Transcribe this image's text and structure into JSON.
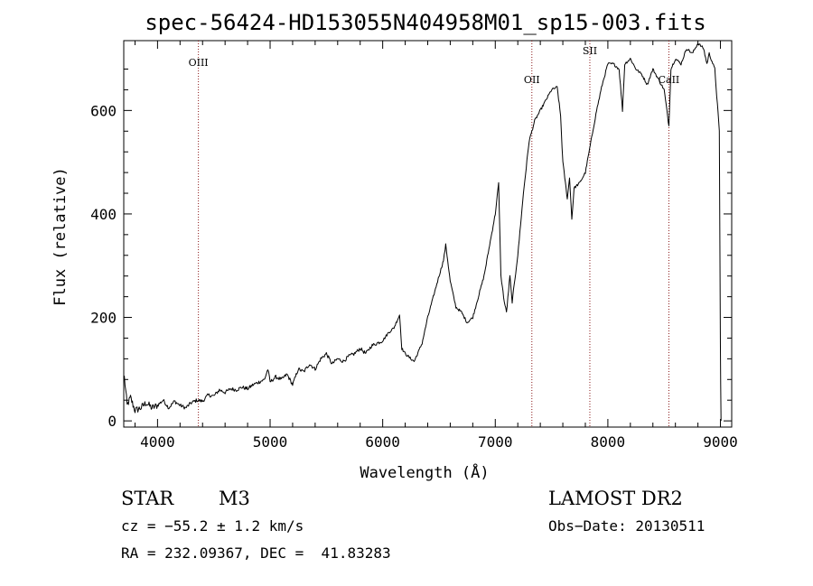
{
  "chart_data": {
    "type": "line",
    "title": "spec-56424-HD153055N404958M01_sp15-003.fits",
    "xlabel": "Wavelength (Å)",
    "ylabel": "Flux (relative)",
    "xlim": [
      3700,
      9100
    ],
    "ylim": [
      -12,
      735
    ],
    "x_ticks": [
      4000,
      5000,
      6000,
      7000,
      8000,
      9000
    ],
    "y_ticks": [
      0,
      200,
      400,
      600
    ],
    "spectral_lines": [
      {
        "label": "OIII",
        "x": 4363
      },
      {
        "label": "OII",
        "x": 7325
      },
      {
        "label": "SII",
        "x": 7840
      },
      {
        "label": "CaII",
        "x": 8542
      }
    ],
    "series": [
      {
        "name": "flux",
        "x": [
          3705,
          3730,
          3760,
          3800,
          3850,
          3900,
          3950,
          4000,
          4050,
          4100,
          4150,
          4200,
          4250,
          4300,
          4350,
          4400,
          4450,
          4500,
          4550,
          4600,
          4650,
          4700,
          4750,
          4800,
          4850,
          4900,
          4950,
          4980,
          5000,
          5050,
          5100,
          5150,
          5200,
          5250,
          5300,
          5350,
          5400,
          5450,
          5500,
          5550,
          5600,
          5650,
          5700,
          5750,
          5800,
          5850,
          5900,
          5950,
          6000,
          6050,
          6100,
          6150,
          6170,
          6200,
          6250,
          6280,
          6300,
          6350,
          6400,
          6450,
          6500,
          6540,
          6560,
          6600,
          6650,
          6700,
          6750,
          6800,
          6850,
          6900,
          6950,
          7000,
          7030,
          7050,
          7080,
          7100,
          7130,
          7150,
          7200,
          7250,
          7300,
          7350,
          7400,
          7450,
          7500,
          7550,
          7580,
          7600,
          7640,
          7660,
          7680,
          7700,
          7750,
          7800,
          7850,
          7900,
          7950,
          8000,
          8050,
          8100,
          8130,
          8150,
          8200,
          8250,
          8300,
          8350,
          8400,
          8450,
          8500,
          8542,
          8560,
          8600,
          8650,
          8700,
          8750,
          8800,
          8850,
          8880,
          8900,
          8950,
          8990,
          9000,
          9005
        ],
        "values": [
          85,
          30,
          45,
          20,
          25,
          35,
          25,
          30,
          40,
          25,
          38,
          30,
          25,
          35,
          40,
          38,
          50,
          48,
          60,
          55,
          62,
          60,
          65,
          62,
          70,
          75,
          80,
          100,
          75,
          85,
          80,
          90,
          70,
          100,
          95,
          110,
          100,
          120,
          130,
          110,
          120,
          115,
          125,
          130,
          140,
          130,
          145,
          150,
          155,
          170,
          180,
          205,
          140,
          130,
          120,
          115,
          125,
          150,
          200,
          240,
          280,
          310,
          340,
          270,
          220,
          210,
          190,
          200,
          240,
          280,
          340,
          400,
          460,
          280,
          230,
          210,
          280,
          230,
          320,
          440,
          540,
          580,
          600,
          620,
          640,
          645,
          590,
          500,
          430,
          470,
          390,
          450,
          460,
          480,
          540,
          600,
          650,
          690,
          690,
          680,
          600,
          690,
          700,
          680,
          670,
          650,
          680,
          660,
          640,
          570,
          680,
          700,
          690,
          720,
          710,
          730,
          720,
          690,
          710,
          680,
          560,
          140,
          0
        ]
      }
    ]
  },
  "info": {
    "object_type": "STAR",
    "subclass": "M3",
    "survey": "LAMOST DR2",
    "redshift": "cz = −55.2 ± 1.2 km/s",
    "obs_date": "Obs−Date: 20130511",
    "coords": "RA = 232.09367, DEC =  41.83283"
  }
}
